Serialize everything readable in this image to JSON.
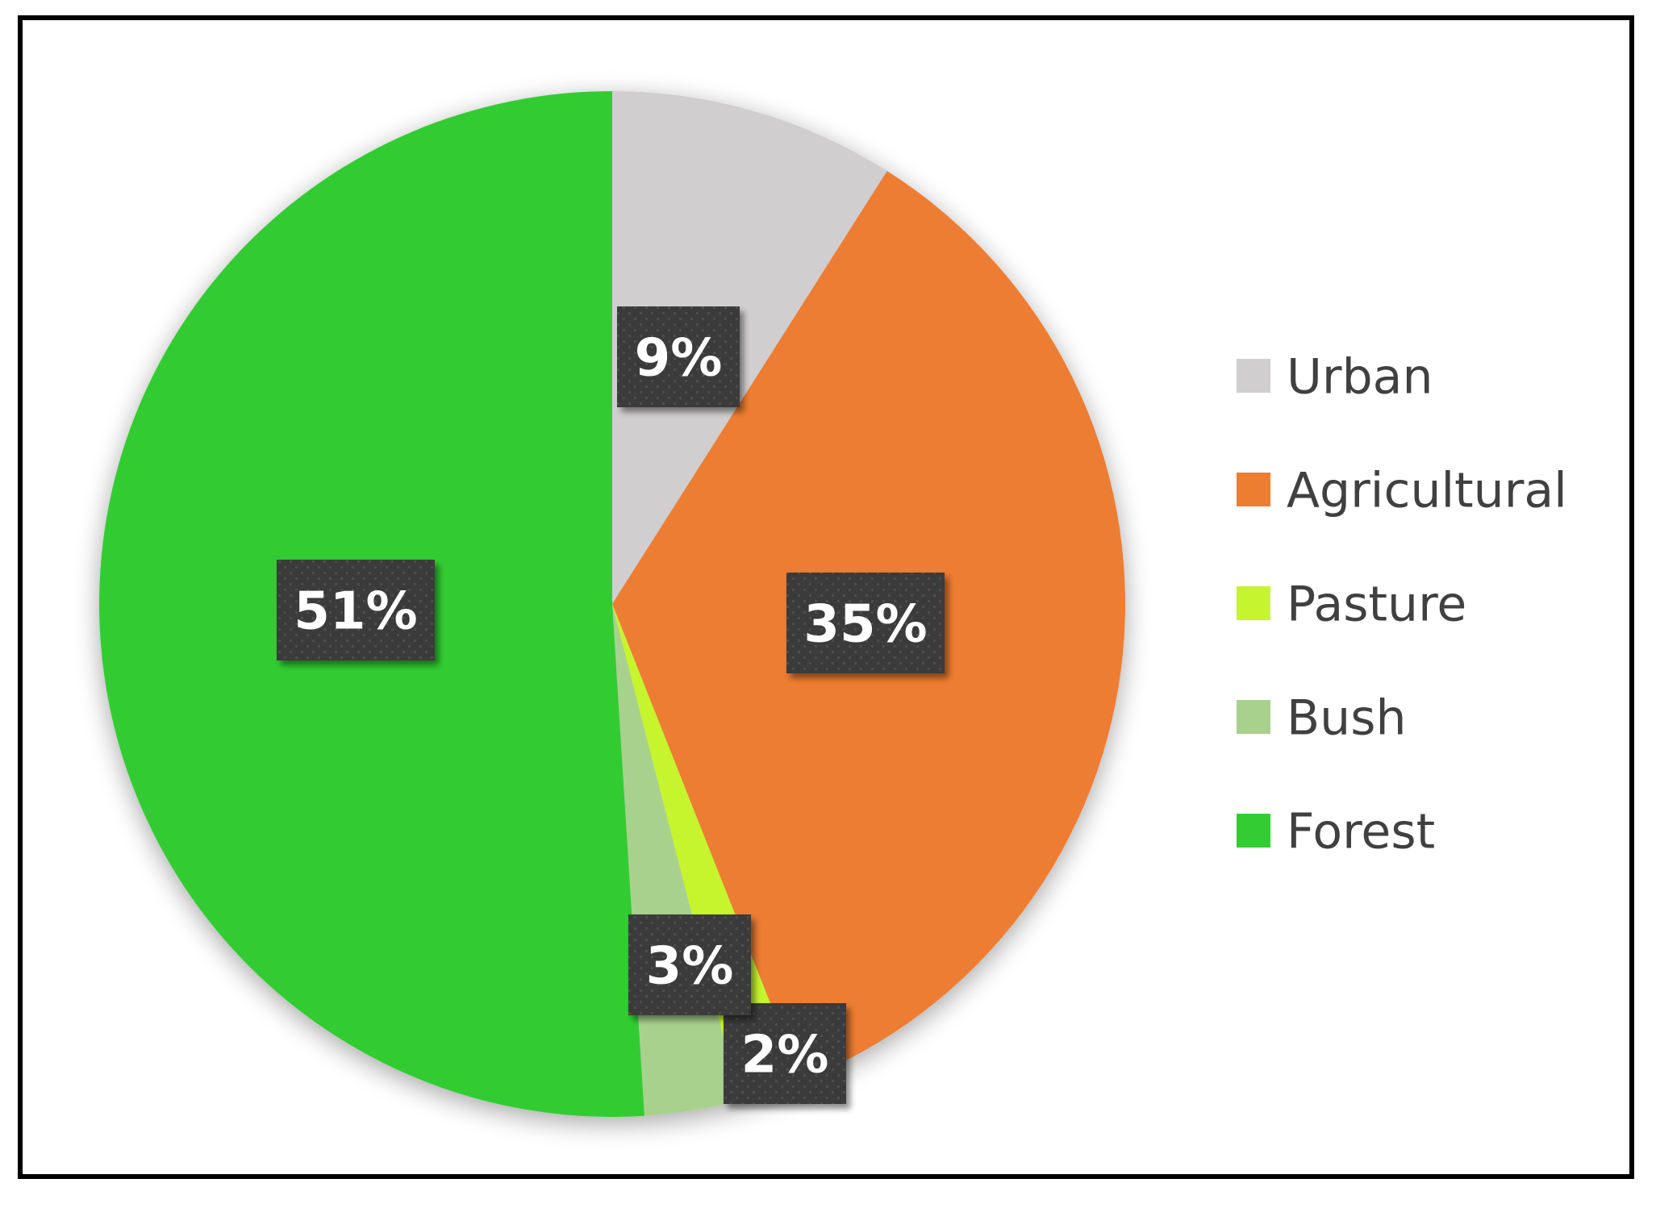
{
  "chart_data": {
    "type": "pie",
    "categories": [
      "Urban",
      "Agricultural",
      "Pasture",
      "Bush",
      "Forest"
    ],
    "values": [
      9,
      35,
      2,
      3,
      51
    ],
    "labels": [
      "9%",
      "35%",
      "2%",
      "3%",
      "51%"
    ],
    "colors": [
      "#d0cece",
      "#ed7d31",
      "#c6f52f",
      "#a9d18e",
      "#33cc33"
    ],
    "legend_position": "right",
    "start_angle": "12 o'clock, clockwise"
  }
}
